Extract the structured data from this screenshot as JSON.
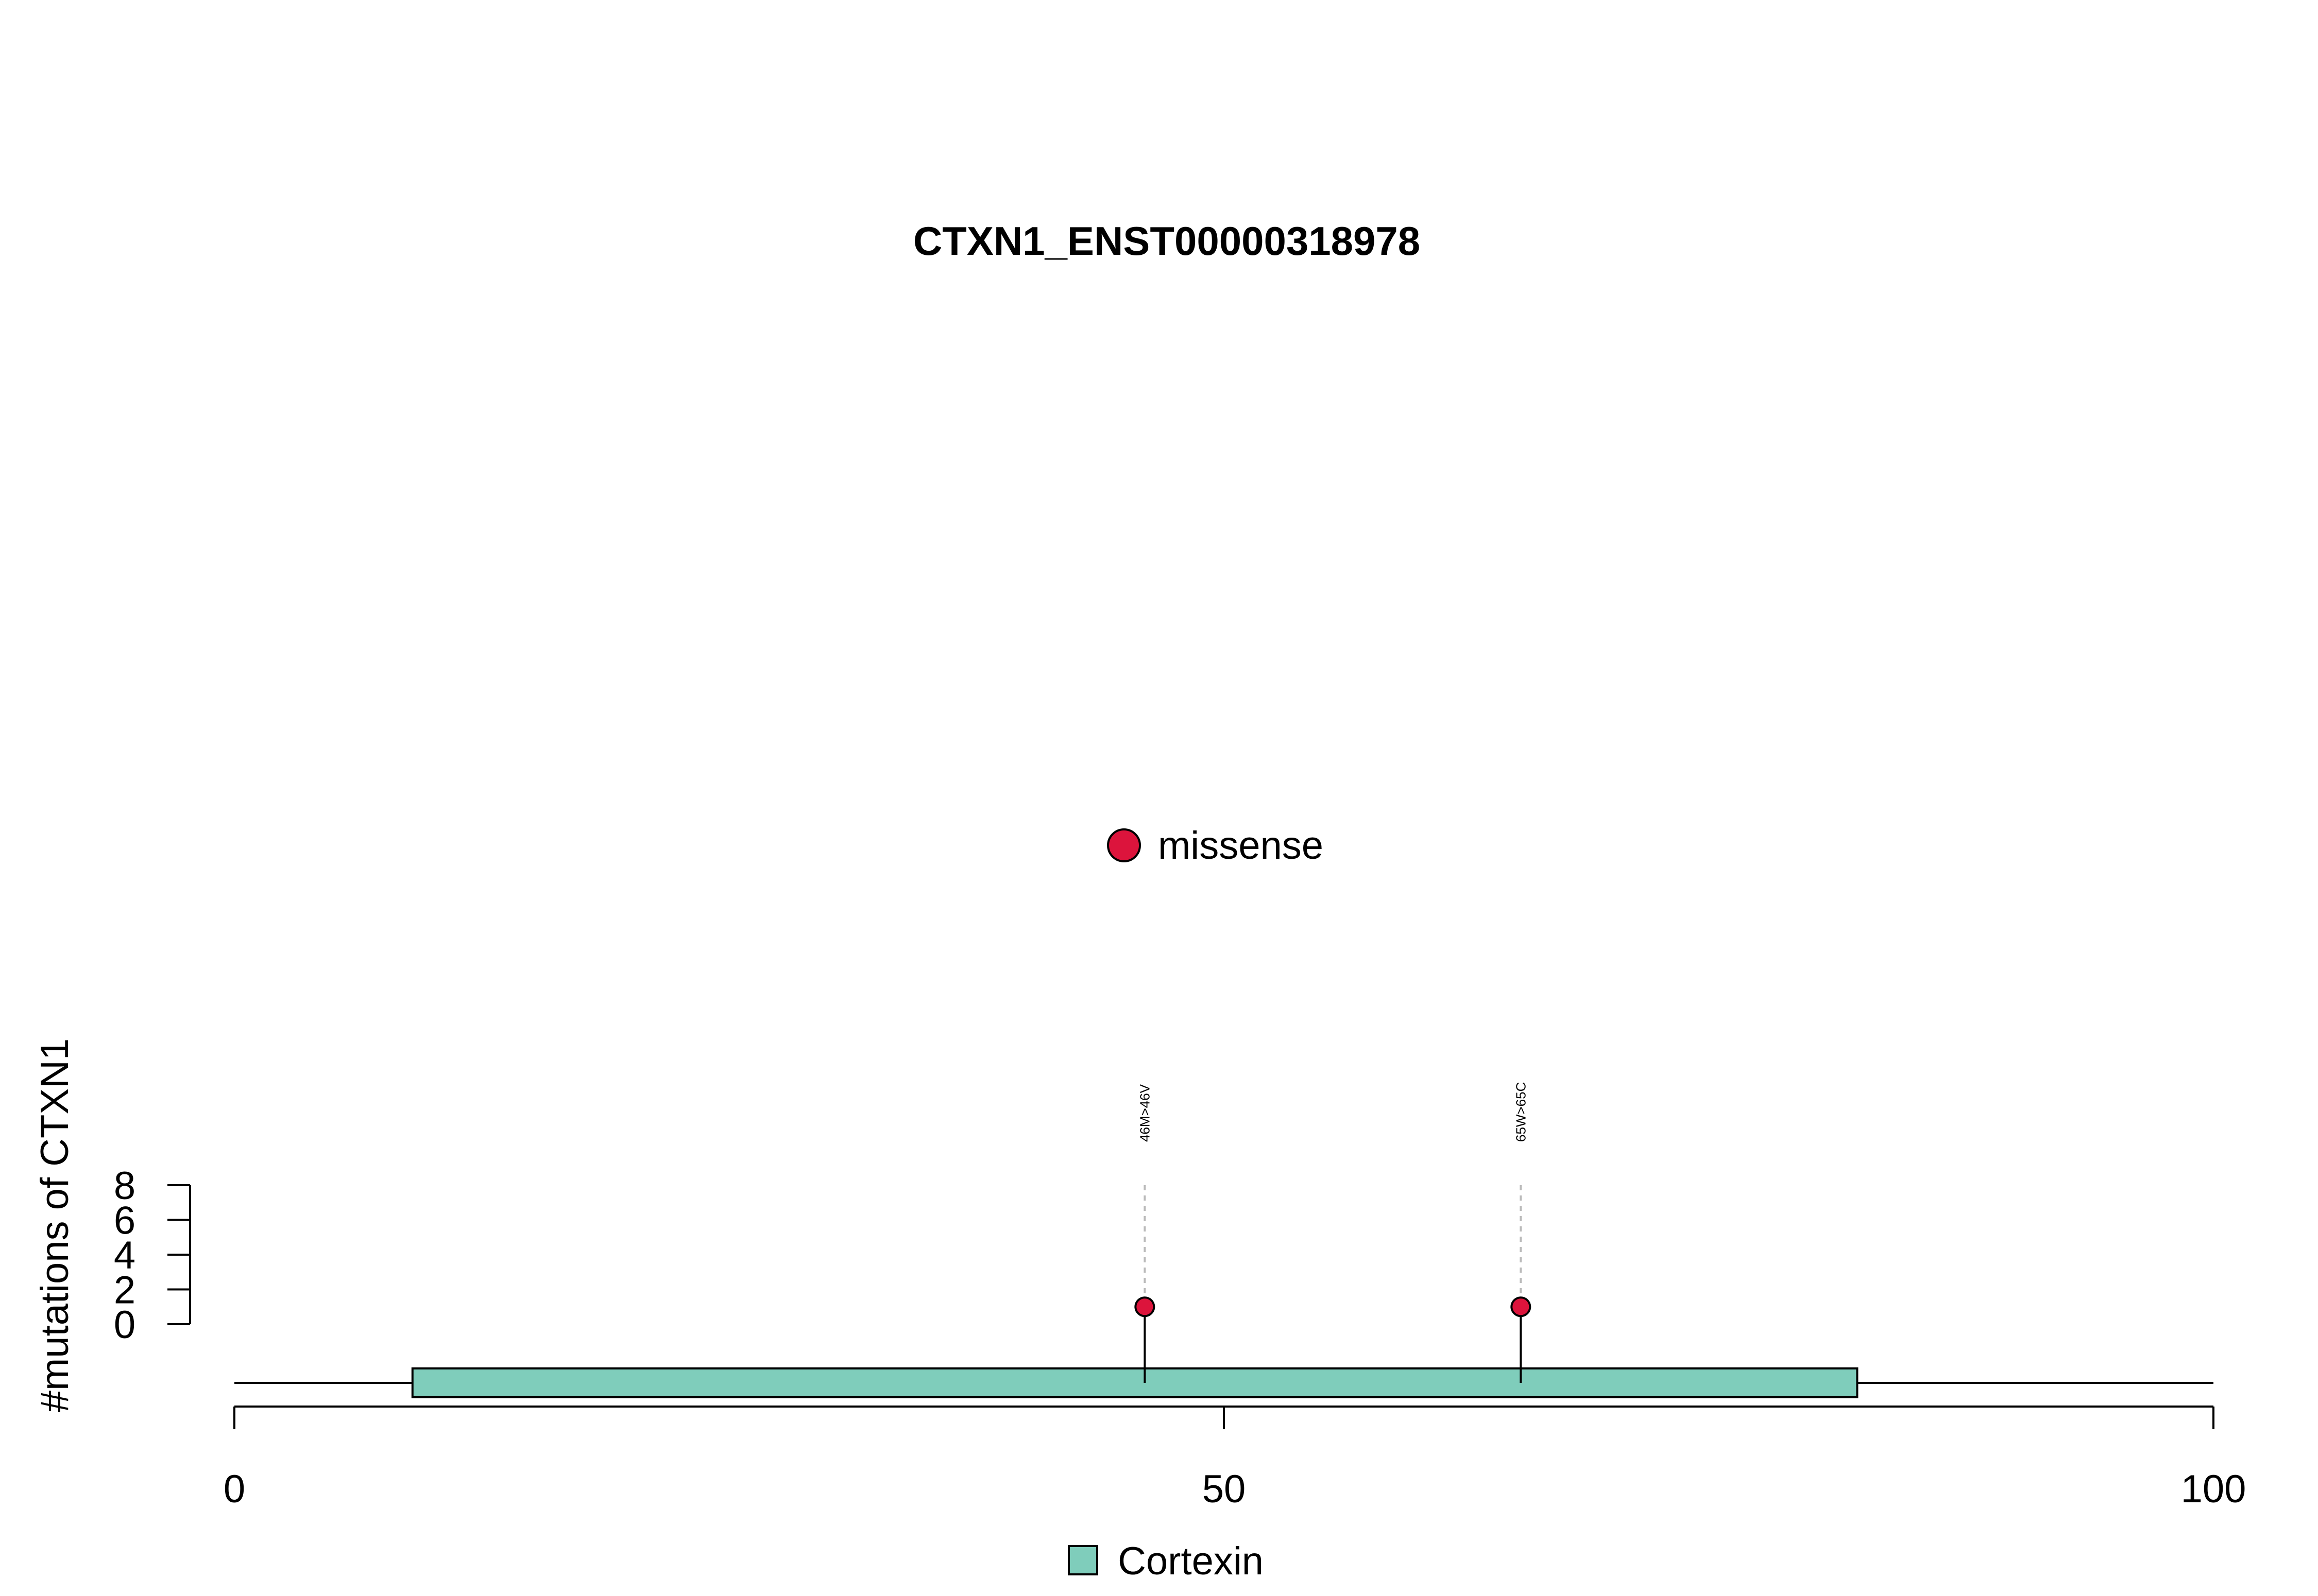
{
  "chart_data": {
    "type": "scatter",
    "subtype": "lollipop",
    "title": "CTXN1_ENST00000318978",
    "xlabel": "",
    "ylabel": "#mutations of CTXN1",
    "xlim": [
      0,
      100
    ],
    "x_ticks": [
      0,
      50,
      100
    ],
    "ylim": [
      0,
      8
    ],
    "y_ticks": [
      0,
      2,
      4,
      6,
      8
    ],
    "grid": false,
    "protein_length": 100,
    "series": [
      {
        "name": "missense",
        "color": "#DC143C",
        "points": [
          {
            "x": 46,
            "y": 1,
            "label": "46M>46V"
          },
          {
            "x": 65,
            "y": 1,
            "label": "65W>65C"
          }
        ]
      }
    ],
    "domains": [
      {
        "name": "Cortexin",
        "start": 9,
        "end": 82,
        "color": "#7FCDBB"
      }
    ],
    "legend_top": {
      "placement": "top-center",
      "entries": [
        {
          "label": "missense",
          "color": "#DC143C",
          "shape": "circle"
        }
      ]
    },
    "legend_bottom": {
      "placement": "bottom-center",
      "entries": [
        {
          "label": "Cortexin",
          "color": "#7FCDBB",
          "shape": "square"
        }
      ]
    }
  }
}
